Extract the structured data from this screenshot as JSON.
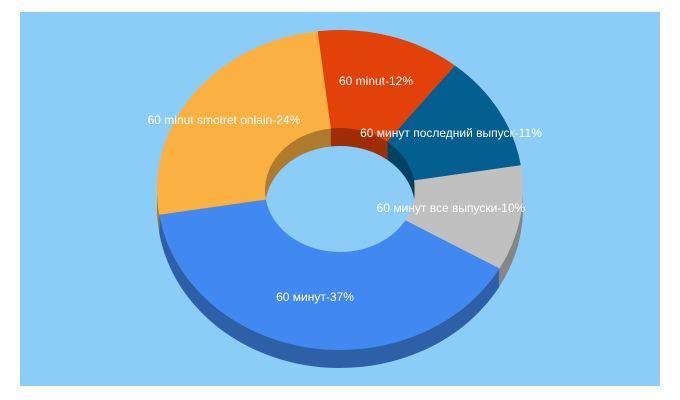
{
  "chart_data": {
    "type": "pie",
    "values": [
      12,
      11,
      10,
      37,
      24
    ],
    "value_labels": [
      "60 minut-12%",
      "60 минут последний выпуск-11%",
      "60 минут все выпуски-10%",
      "60 минут-37%",
      "60 minut smotret onlain-24%"
    ],
    "colors": [
      "#e2410a",
      "#035f8f",
      "#c0c0c0",
      "#4189f0",
      "#fab141"
    ]
  }
}
